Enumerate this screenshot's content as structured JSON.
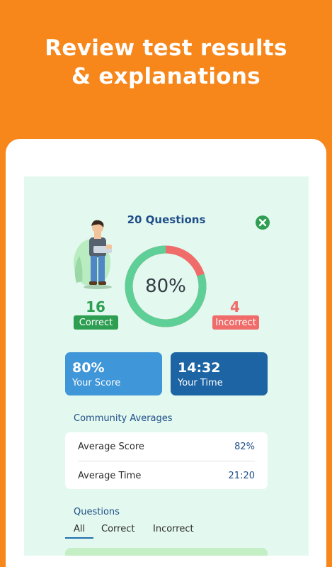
{
  "headline": {
    "line1": "Review test results",
    "line2": "& explanations"
  },
  "results": {
    "title": "20 Questions",
    "score_percent": 80,
    "score_label": "80%",
    "correct_count": "16",
    "correct_label": "Correct",
    "incorrect_count": "4",
    "incorrect_label": "Incorrect"
  },
  "cards": {
    "score_value": "80%",
    "score_label": "Your Score",
    "time_value": "14:32",
    "time_label": "Your Time"
  },
  "community": {
    "title": "Community Averages",
    "rows": [
      {
        "label": "Average Score",
        "value": "82%"
      },
      {
        "label": "Average Time",
        "value": "21:20"
      }
    ]
  },
  "questions": {
    "title": "Questions",
    "tabs": [
      "All",
      "Correct",
      "Incorrect"
    ],
    "active_tab": "All"
  },
  "colors": {
    "background": "#f7861b",
    "correct": "#2e9e52",
    "incorrect": "#ef6c6a",
    "ring_correct": "#5fcf98",
    "score_card": "#3f96d8",
    "time_card": "#1c64a3",
    "heading": "#1f4f8a"
  },
  "icons": {
    "close": "close-circle-icon",
    "avatar": "student-illustration"
  }
}
